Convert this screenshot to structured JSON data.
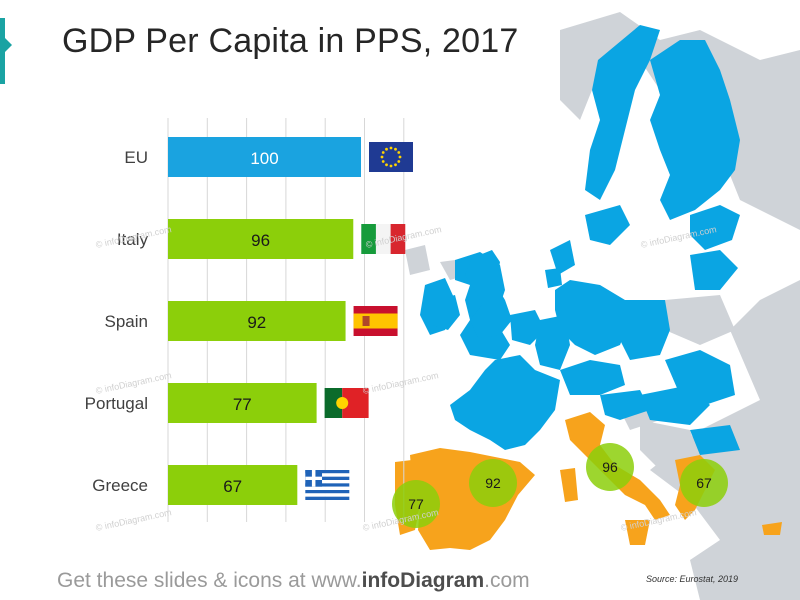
{
  "title": "GDP Per Capita in PPS, 2017",
  "footer": {
    "prefix": "Get these slides & icons at www.",
    "brand": "infoDiagram",
    "suffix": ".com"
  },
  "source": "Source: Eurostat, 2019",
  "watermark": "© infoDiagram.com",
  "colors": {
    "eu_bar": "#1aa3e0",
    "country_bar": "#8ccf0a",
    "map_eu": "#0aa5e3",
    "map_highlight": "#f7a31c",
    "map_other": "#cfd3d8",
    "bubble": "#8ccf0a"
  },
  "chart_data": {
    "type": "bar",
    "orientation": "horizontal",
    "categories": [
      "EU",
      "Italy",
      "Spain",
      "Portugal",
      "Greece"
    ],
    "values": [
      100,
      96,
      92,
      77,
      67
    ],
    "flags": [
      "eu-flag-icon",
      "italy-flag-icon",
      "spain-flag-icon",
      "portugal-flag-icon",
      "greece-flag-icon"
    ],
    "xlim": [
      0,
      100
    ],
    "grid": true,
    "map_bubbles": [
      {
        "country": "Portugal",
        "value": 77
      },
      {
        "country": "Spain",
        "value": 92
      },
      {
        "country": "Italy",
        "value": 96
      },
      {
        "country": "Greece",
        "value": 67
      }
    ]
  }
}
